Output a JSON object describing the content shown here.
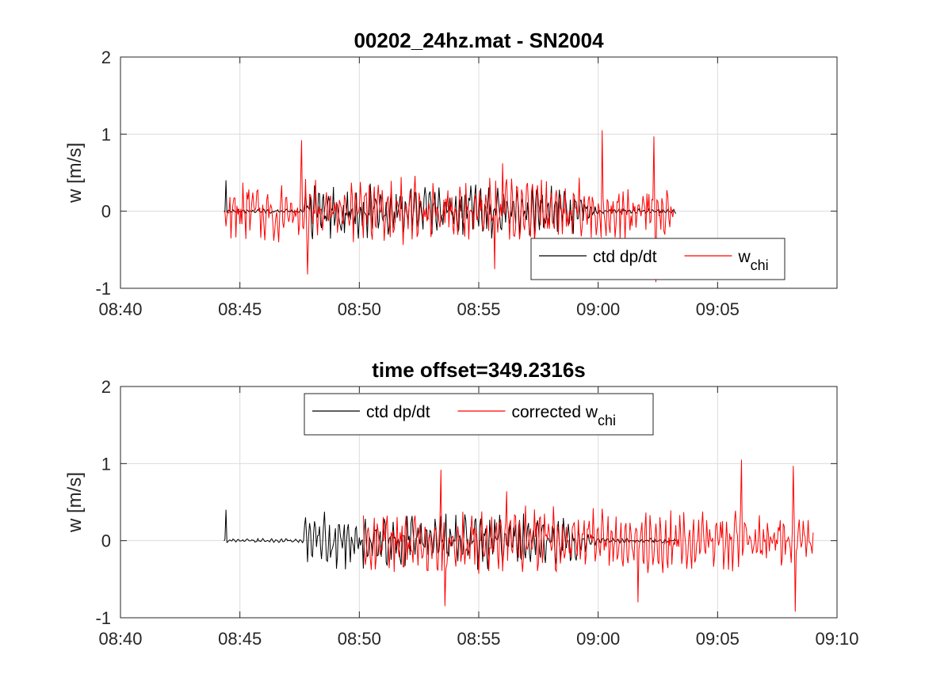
{
  "chart_data": [
    {
      "type": "line",
      "title": "00202_24hz.mat - SN2004",
      "xlabel": "",
      "ylabel": "w [m/s]",
      "xlim": [
        "08:40",
        "09:10"
      ],
      "ylim": [
        -1,
        2
      ],
      "xticks": [
        "08:40",
        "08:45",
        "08:50",
        "08:55",
        "09:00",
        "09:05"
      ],
      "yticks": [
        "-1",
        "0",
        "1",
        "2"
      ],
      "grid": true,
      "legend": {
        "position": "bottom-right",
        "entries": [
          {
            "label": "ctd dp/dt",
            "sub": "",
            "color": "#000000"
          },
          {
            "label": "w",
            "sub": "chi",
            "color": "#ff0000"
          }
        ]
      },
      "series": [
        {
          "name": "ctd dp/dt",
          "color": "#000000",
          "x_range": [
            "08:44:20",
            "09:03:15"
          ],
          "profile": [
            {
              "t": "08:44:20",
              "amp": 0.02
            },
            {
              "t": "08:47:40",
              "amp": 0.03
            },
            {
              "t": "08:47:45",
              "amp": 0.35
            },
            {
              "t": "08:52:00",
              "amp": 0.3
            },
            {
              "t": "08:55:00",
              "amp": 0.33
            },
            {
              "t": "08:59:00",
              "amp": 0.3
            },
            {
              "t": "09:00:00",
              "amp": 0.03
            },
            {
              "t": "09:03:15",
              "amp": 0.03
            }
          ],
          "peaks": [
            {
              "t": "08:44:25",
              "y": 0.4
            }
          ]
        },
        {
          "name": "w_chi",
          "color": "#ff0000",
          "x_range": [
            "08:44:20",
            "09:03:10"
          ],
          "profile": [
            {
              "t": "08:44:20",
              "amp": 0.35
            },
            {
              "t": "08:50:00",
              "amp": 0.4
            },
            {
              "t": "08:55:00",
              "amp": 0.42
            },
            {
              "t": "09:00:00",
              "amp": 0.38
            },
            {
              "t": "09:03:10",
              "amp": 0.3
            }
          ],
          "peaks": [
            {
              "t": "08:47:35",
              "y": 0.92
            },
            {
              "t": "08:47:50",
              "y": -0.82
            },
            {
              "t": "09:00:10",
              "y": 1.05
            },
            {
              "t": "09:02:20",
              "y": 0.97
            },
            {
              "t": "09:02:25",
              "y": -0.92
            },
            {
              "t": "08:56:00",
              "y": 0.62
            },
            {
              "t": "08:55:40",
              "y": -0.75
            }
          ]
        }
      ]
    },
    {
      "type": "line",
      "title": "time offset=349.2316s",
      "xlabel": "",
      "ylabel": "w [m/s]",
      "xlim": [
        "08:40",
        "09:10"
      ],
      "ylim": [
        -1,
        2
      ],
      "xticks": [
        "08:40",
        "08:45",
        "08:50",
        "08:55",
        "09:00",
        "09:05",
        "09:10"
      ],
      "yticks": [
        "-1",
        "0",
        "1",
        "2"
      ],
      "grid": true,
      "legend": {
        "position": "top-center",
        "entries": [
          {
            "label": "ctd dp/dt",
            "sub": "",
            "color": "#000000"
          },
          {
            "label": "corrected w",
            "sub": "chi",
            "color": "#ff0000"
          }
        ]
      },
      "series": [
        {
          "name": "ctd dp/dt",
          "color": "#000000",
          "x_range": [
            "08:44:20",
            "09:03:15"
          ],
          "profile": [
            {
              "t": "08:44:20",
              "amp": 0.02
            },
            {
              "t": "08:47:40",
              "amp": 0.03
            },
            {
              "t": "08:47:45",
              "amp": 0.35
            },
            {
              "t": "08:52:00",
              "amp": 0.3
            },
            {
              "t": "08:55:00",
              "amp": 0.33
            },
            {
              "t": "08:59:00",
              "amp": 0.3
            },
            {
              "t": "09:00:00",
              "amp": 0.03
            },
            {
              "t": "09:03:15",
              "amp": 0.03
            }
          ],
          "peaks": [
            {
              "t": "08:44:25",
              "y": 0.4
            }
          ]
        },
        {
          "name": "corrected w_chi",
          "color": "#ff0000",
          "x_range": [
            "08:50:10",
            "09:09:00"
          ],
          "profile": [
            {
              "t": "08:50:10",
              "amp": 0.35
            },
            {
              "t": "08:55:00",
              "amp": 0.42
            },
            {
              "t": "09:00:00",
              "amp": 0.4
            },
            {
              "t": "09:05:00",
              "amp": 0.38
            },
            {
              "t": "09:09:00",
              "amp": 0.3
            }
          ],
          "peaks": [
            {
              "t": "08:53:25",
              "y": 0.92
            },
            {
              "t": "08:53:35",
              "y": -0.85
            },
            {
              "t": "09:06:00",
              "y": 1.05
            },
            {
              "t": "09:08:10",
              "y": 0.97
            },
            {
              "t": "09:08:15",
              "y": -0.92
            },
            {
              "t": "09:01:40",
              "y": -0.8
            },
            {
              "t": "08:56:10",
              "y": 0.64
            }
          ]
        }
      ]
    }
  ]
}
